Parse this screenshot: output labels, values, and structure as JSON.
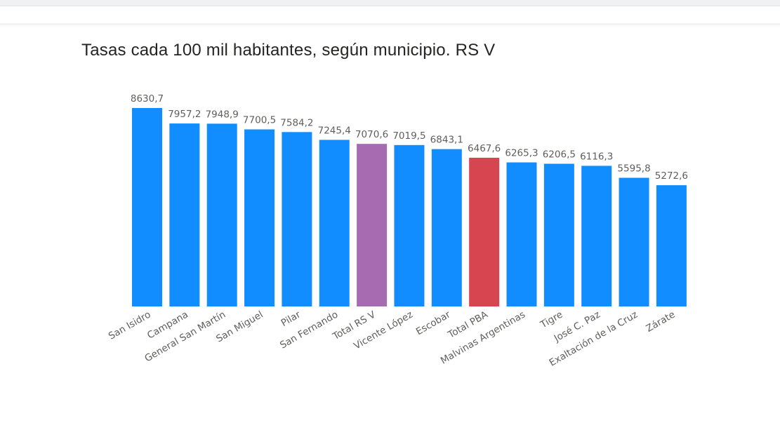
{
  "chart_data": {
    "type": "bar",
    "title": "Tasas cada 100 mil habitantes, según municipio. RS V",
    "xlabel": "",
    "ylabel": "",
    "ylim": [
      0,
      8630.7
    ],
    "grid": false,
    "legend": "none",
    "categories": [
      "San Isidro",
      "Campana",
      "General San Martín",
      "San Miguel",
      "Pilar",
      "San Fernando",
      "Total RS V",
      "Vicente López",
      "Escobar",
      "Total PBA",
      "Malvinas Argentinas",
      "Tigre",
      "José C. Paz",
      "Exaltación de la Cruz",
      "Zárate"
    ],
    "values": [
      8630.7,
      7957.2,
      7948.9,
      7700.5,
      7584.2,
      7245.4,
      7070.6,
      7019.5,
      6843.1,
      6467.6,
      6265.3,
      6206.5,
      6116.3,
      5595.8,
      5272.6
    ],
    "value_labels": [
      "8630,7",
      "7957,2",
      "7948,9",
      "7700,5",
      "7584,2",
      "7245,4",
      "7070,6",
      "7019,5",
      "6843,1",
      "6467,6",
      "6265,3",
      "6206,5",
      "6116,3",
      "5595,8",
      "5272,6"
    ],
    "colors": [
      "#118dff",
      "#118dff",
      "#118dff",
      "#118dff",
      "#118dff",
      "#118dff",
      "#a66bb0",
      "#118dff",
      "#118dff",
      "#d64550",
      "#118dff",
      "#118dff",
      "#118dff",
      "#118dff",
      "#118dff"
    ]
  },
  "colors": {
    "default_bar": "#118dff",
    "total_rs_v": "#a66bb0",
    "total_pba": "#d64550"
  }
}
